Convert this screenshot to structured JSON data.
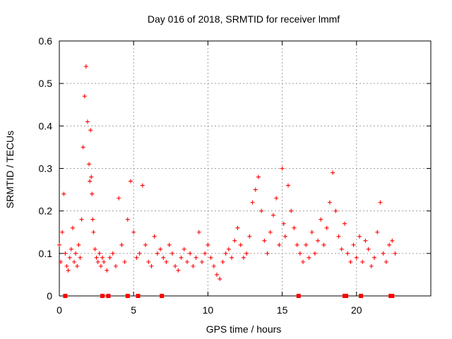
{
  "chart_data": {
    "type": "scatter",
    "title": "Day 016 of 2018, SRMTID for receiver lmmf",
    "xlabel": "GPS time / hours",
    "ylabel": "SRMTID / TECUs",
    "xlim": [
      0,
      25
    ],
    "ylim": [
      0,
      0.6
    ],
    "xticks": [
      0,
      5,
      10,
      15,
      20
    ],
    "xtick_labels": [
      "0",
      "5",
      "10",
      "15",
      "20"
    ],
    "yticks": [
      0,
      0.1,
      0.2,
      0.3,
      0.4,
      0.5,
      0.6
    ],
    "ytick_labels": [
      "0",
      "0.1",
      "0.2",
      "0.3",
      "0.4",
      "0.5",
      "0.6"
    ],
    "grid": true,
    "marker": "+",
    "color": "#ff0000",
    "series": [
      {
        "name": "SRMTID",
        "x": [
          0.0,
          0.1,
          0.2,
          0.3,
          0.4,
          0.5,
          0.6,
          0.7,
          0.8,
          0.9,
          1.0,
          1.1,
          1.2,
          1.3,
          1.4,
          1.5,
          1.6,
          1.7,
          1.8,
          1.9,
          2.0,
          2.05,
          2.1,
          2.15,
          2.2,
          2.25,
          2.3,
          2.4,
          2.5,
          2.6,
          2.7,
          2.8,
          2.9,
          3.0,
          3.2,
          3.4,
          3.6,
          3.8,
          4.0,
          4.2,
          4.4,
          4.6,
          4.8,
          5.0,
          5.2,
          5.4,
          5.6,
          5.8,
          6.0,
          6.2,
          6.4,
          6.6,
          6.8,
          7.0,
          7.2,
          7.4,
          7.6,
          7.8,
          8.0,
          8.2,
          8.4,
          8.6,
          8.8,
          9.0,
          9.2,
          9.4,
          9.6,
          9.8,
          10.0,
          10.2,
          10.4,
          10.6,
          10.8,
          11.0,
          11.2,
          11.4,
          11.6,
          11.8,
          12.0,
          12.2,
          12.4,
          12.6,
          12.8,
          13.0,
          13.2,
          13.4,
          13.6,
          13.8,
          14.0,
          14.2,
          14.4,
          14.6,
          14.8,
          15.0,
          15.1,
          15.2,
          15.4,
          15.6,
          15.8,
          16.0,
          16.2,
          16.4,
          16.6,
          16.8,
          17.0,
          17.2,
          17.4,
          17.6,
          17.8,
          18.0,
          18.2,
          18.4,
          18.6,
          18.8,
          19.0,
          19.2,
          19.4,
          19.6,
          19.8,
          20.0,
          20.2,
          20.4,
          20.6,
          20.8,
          21.0,
          21.2,
          21.4,
          21.6,
          21.8,
          22.0,
          22.2,
          22.4,
          22.6
        ],
        "y": [
          0.12,
          0.08,
          0.15,
          0.24,
          0.1,
          0.07,
          0.06,
          0.09,
          0.11,
          0.16,
          0.08,
          0.1,
          0.07,
          0.12,
          0.09,
          0.18,
          0.35,
          0.47,
          0.54,
          0.41,
          0.31,
          0.27,
          0.39,
          0.28,
          0.24,
          0.18,
          0.15,
          0.11,
          0.09,
          0.08,
          0.1,
          0.07,
          0.09,
          0.08,
          0.06,
          0.09,
          0.1,
          0.07,
          0.23,
          0.12,
          0.08,
          0.18,
          0.27,
          0.15,
          0.09,
          0.1,
          0.26,
          0.12,
          0.08,
          0.07,
          0.14,
          0.1,
          0.11,
          0.09,
          0.08,
          0.12,
          0.1,
          0.07,
          0.06,
          0.09,
          0.11,
          0.08,
          0.1,
          0.07,
          0.09,
          0.15,
          0.08,
          0.1,
          0.12,
          0.09,
          0.07,
          0.05,
          0.04,
          0.08,
          0.1,
          0.11,
          0.09,
          0.13,
          0.16,
          0.12,
          0.09,
          0.1,
          0.14,
          0.22,
          0.25,
          0.28,
          0.2,
          0.13,
          0.1,
          0.15,
          0.19,
          0.23,
          0.12,
          0.3,
          0.17,
          0.14,
          0.26,
          0.2,
          0.16,
          0.12,
          0.1,
          0.08,
          0.12,
          0.09,
          0.15,
          0.1,
          0.13,
          0.18,
          0.12,
          0.16,
          0.22,
          0.29,
          0.2,
          0.14,
          0.11,
          0.17,
          0.1,
          0.08,
          0.12,
          0.09,
          0.14,
          0.08,
          0.13,
          0.11,
          0.07,
          0.09,
          0.15,
          0.22,
          0.1,
          0.08,
          0.12,
          0.13,
          0.1
        ]
      }
    ],
    "zero_markers_x": [
      0.4,
      2.9,
      3.3,
      4.6,
      5.3,
      6.9,
      16.1,
      19.2,
      19.3,
      20.3,
      22.3,
      22.4
    ]
  }
}
